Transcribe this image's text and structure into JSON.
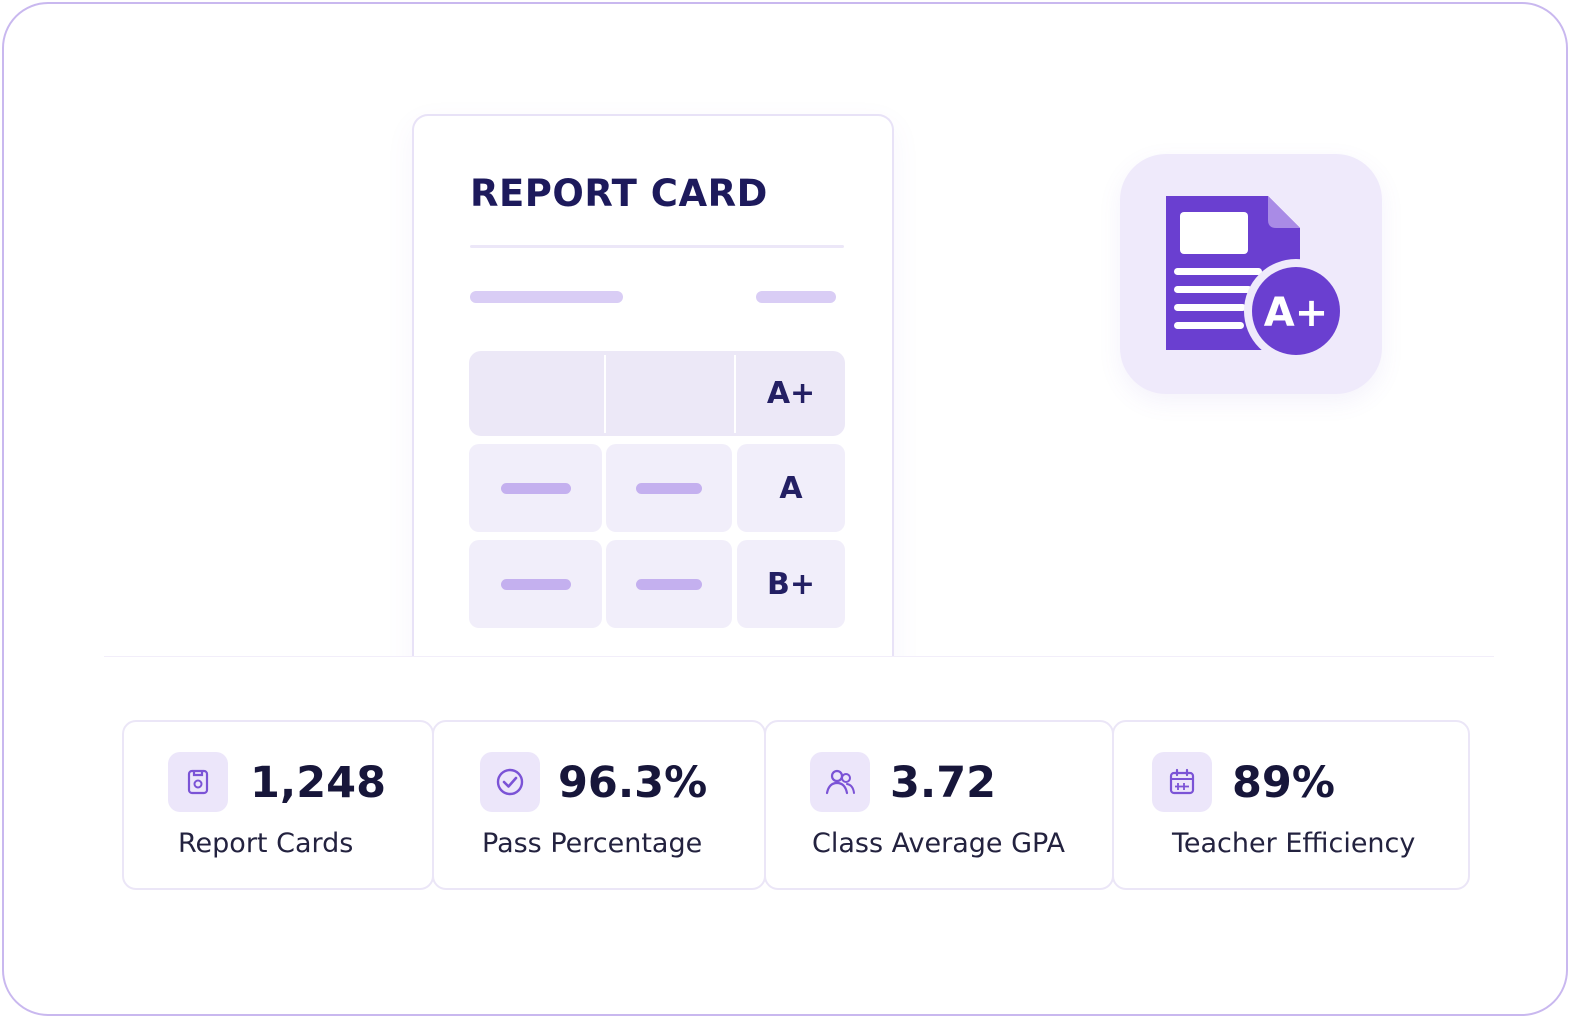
{
  "report_card": {
    "title": "REPORT CARD",
    "grades": [
      "A+",
      "A",
      "B+"
    ]
  },
  "app_icon": {
    "name": "report-card-grade-icon",
    "badge_text": "A+"
  },
  "stats": [
    {
      "icon": "report-document-icon",
      "value": "1,248",
      "label": "Report Cards"
    },
    {
      "icon": "check-circle-icon",
      "value": "96.3%",
      "label": "Pass Percentage"
    },
    {
      "icon": "users-icon",
      "value": "3.72",
      "label": "Class Average GPA"
    },
    {
      "icon": "calendar-icon",
      "value": "89%",
      "label": "Teacher Efficiency"
    }
  ],
  "colors": {
    "accent": "#6a3fd0",
    "accent_light": "#ece6fa",
    "title_navy": "#1d1a5c",
    "border": "#c9b8ef"
  }
}
